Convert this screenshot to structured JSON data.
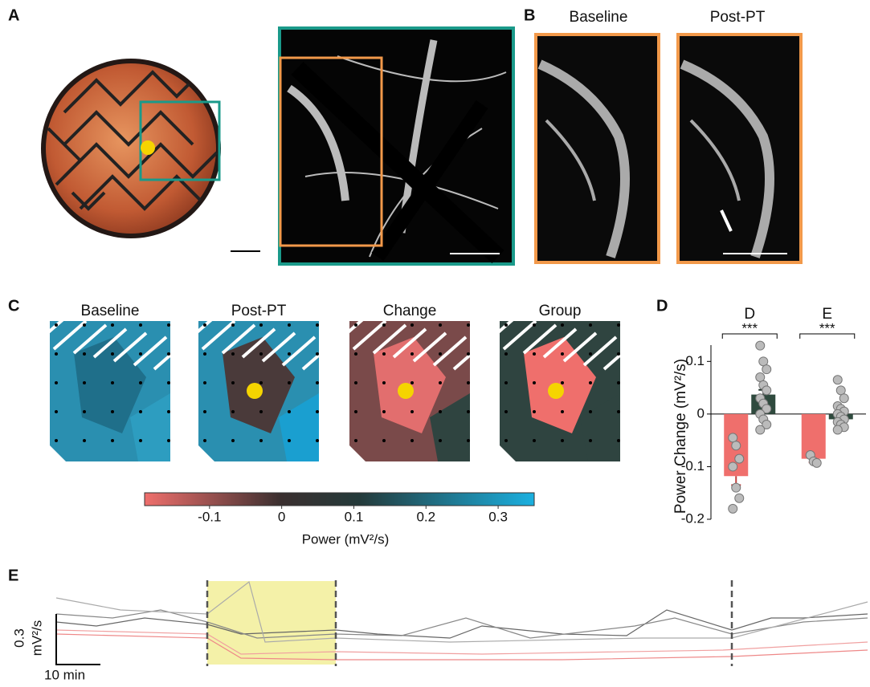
{
  "panels": {
    "A": {
      "label": "A"
    },
    "B": {
      "label": "B",
      "titles": [
        "Baseline",
        "Post-PT"
      ]
    },
    "C": {
      "label": "C",
      "titles": [
        "Baseline",
        "Post-PT",
        "Change",
        "Group"
      ],
      "colorbar": {
        "lim": [
          -0.19,
          0.35
        ],
        "ticks": [
          -0.1,
          0,
          0.1,
          0.2,
          0.3
        ],
        "label": "Power (mV²/s)"
      }
    },
    "E": {
      "label": "E",
      "scale_y": "0.3",
      "scale_unit": "mV²/s",
      "scale_x": "10 min"
    }
  },
  "chart_data": {
    "type": "bar",
    "panel_label": "D",
    "y_label": "Power Change (mV²/s)",
    "categories": [
      "D",
      "E"
    ],
    "annotations": [
      "***",
      "***"
    ],
    "series": [
      {
        "color": "#ef6f6c",
        "values": [
          -0.118,
          -0.085
        ],
        "errors": [
          0.017,
          0.007
        ],
        "points": [
          [
            -0.045,
            -0.06,
            -0.085,
            -0.1,
            -0.14,
            -0.16,
            -0.18
          ],
          [
            -0.078,
            -0.09,
            -0.093
          ]
        ]
      },
      {
        "color": "#2f4a3e",
        "values": [
          0.037,
          -0.01
        ],
        "errors": [
          0.009,
          0.004
        ],
        "points": [
          [
            0.13,
            0.1,
            0.085,
            0.07,
            0.055,
            0.045,
            0.03,
            0.02,
            0.01,
            0,
            -0.01,
            -0.02,
            -0.03
          ],
          [
            0.065,
            0.045,
            0.03,
            0.015,
            0.01,
            0.005,
            0,
            -0.005,
            -0.01,
            -0.015,
            -0.02,
            -0.025,
            -0.03
          ]
        ]
      }
    ],
    "ylim": [
      -0.2,
      0.131
    ],
    "yticks": [
      -0.2,
      -0.1,
      0,
      0.1
    ]
  }
}
